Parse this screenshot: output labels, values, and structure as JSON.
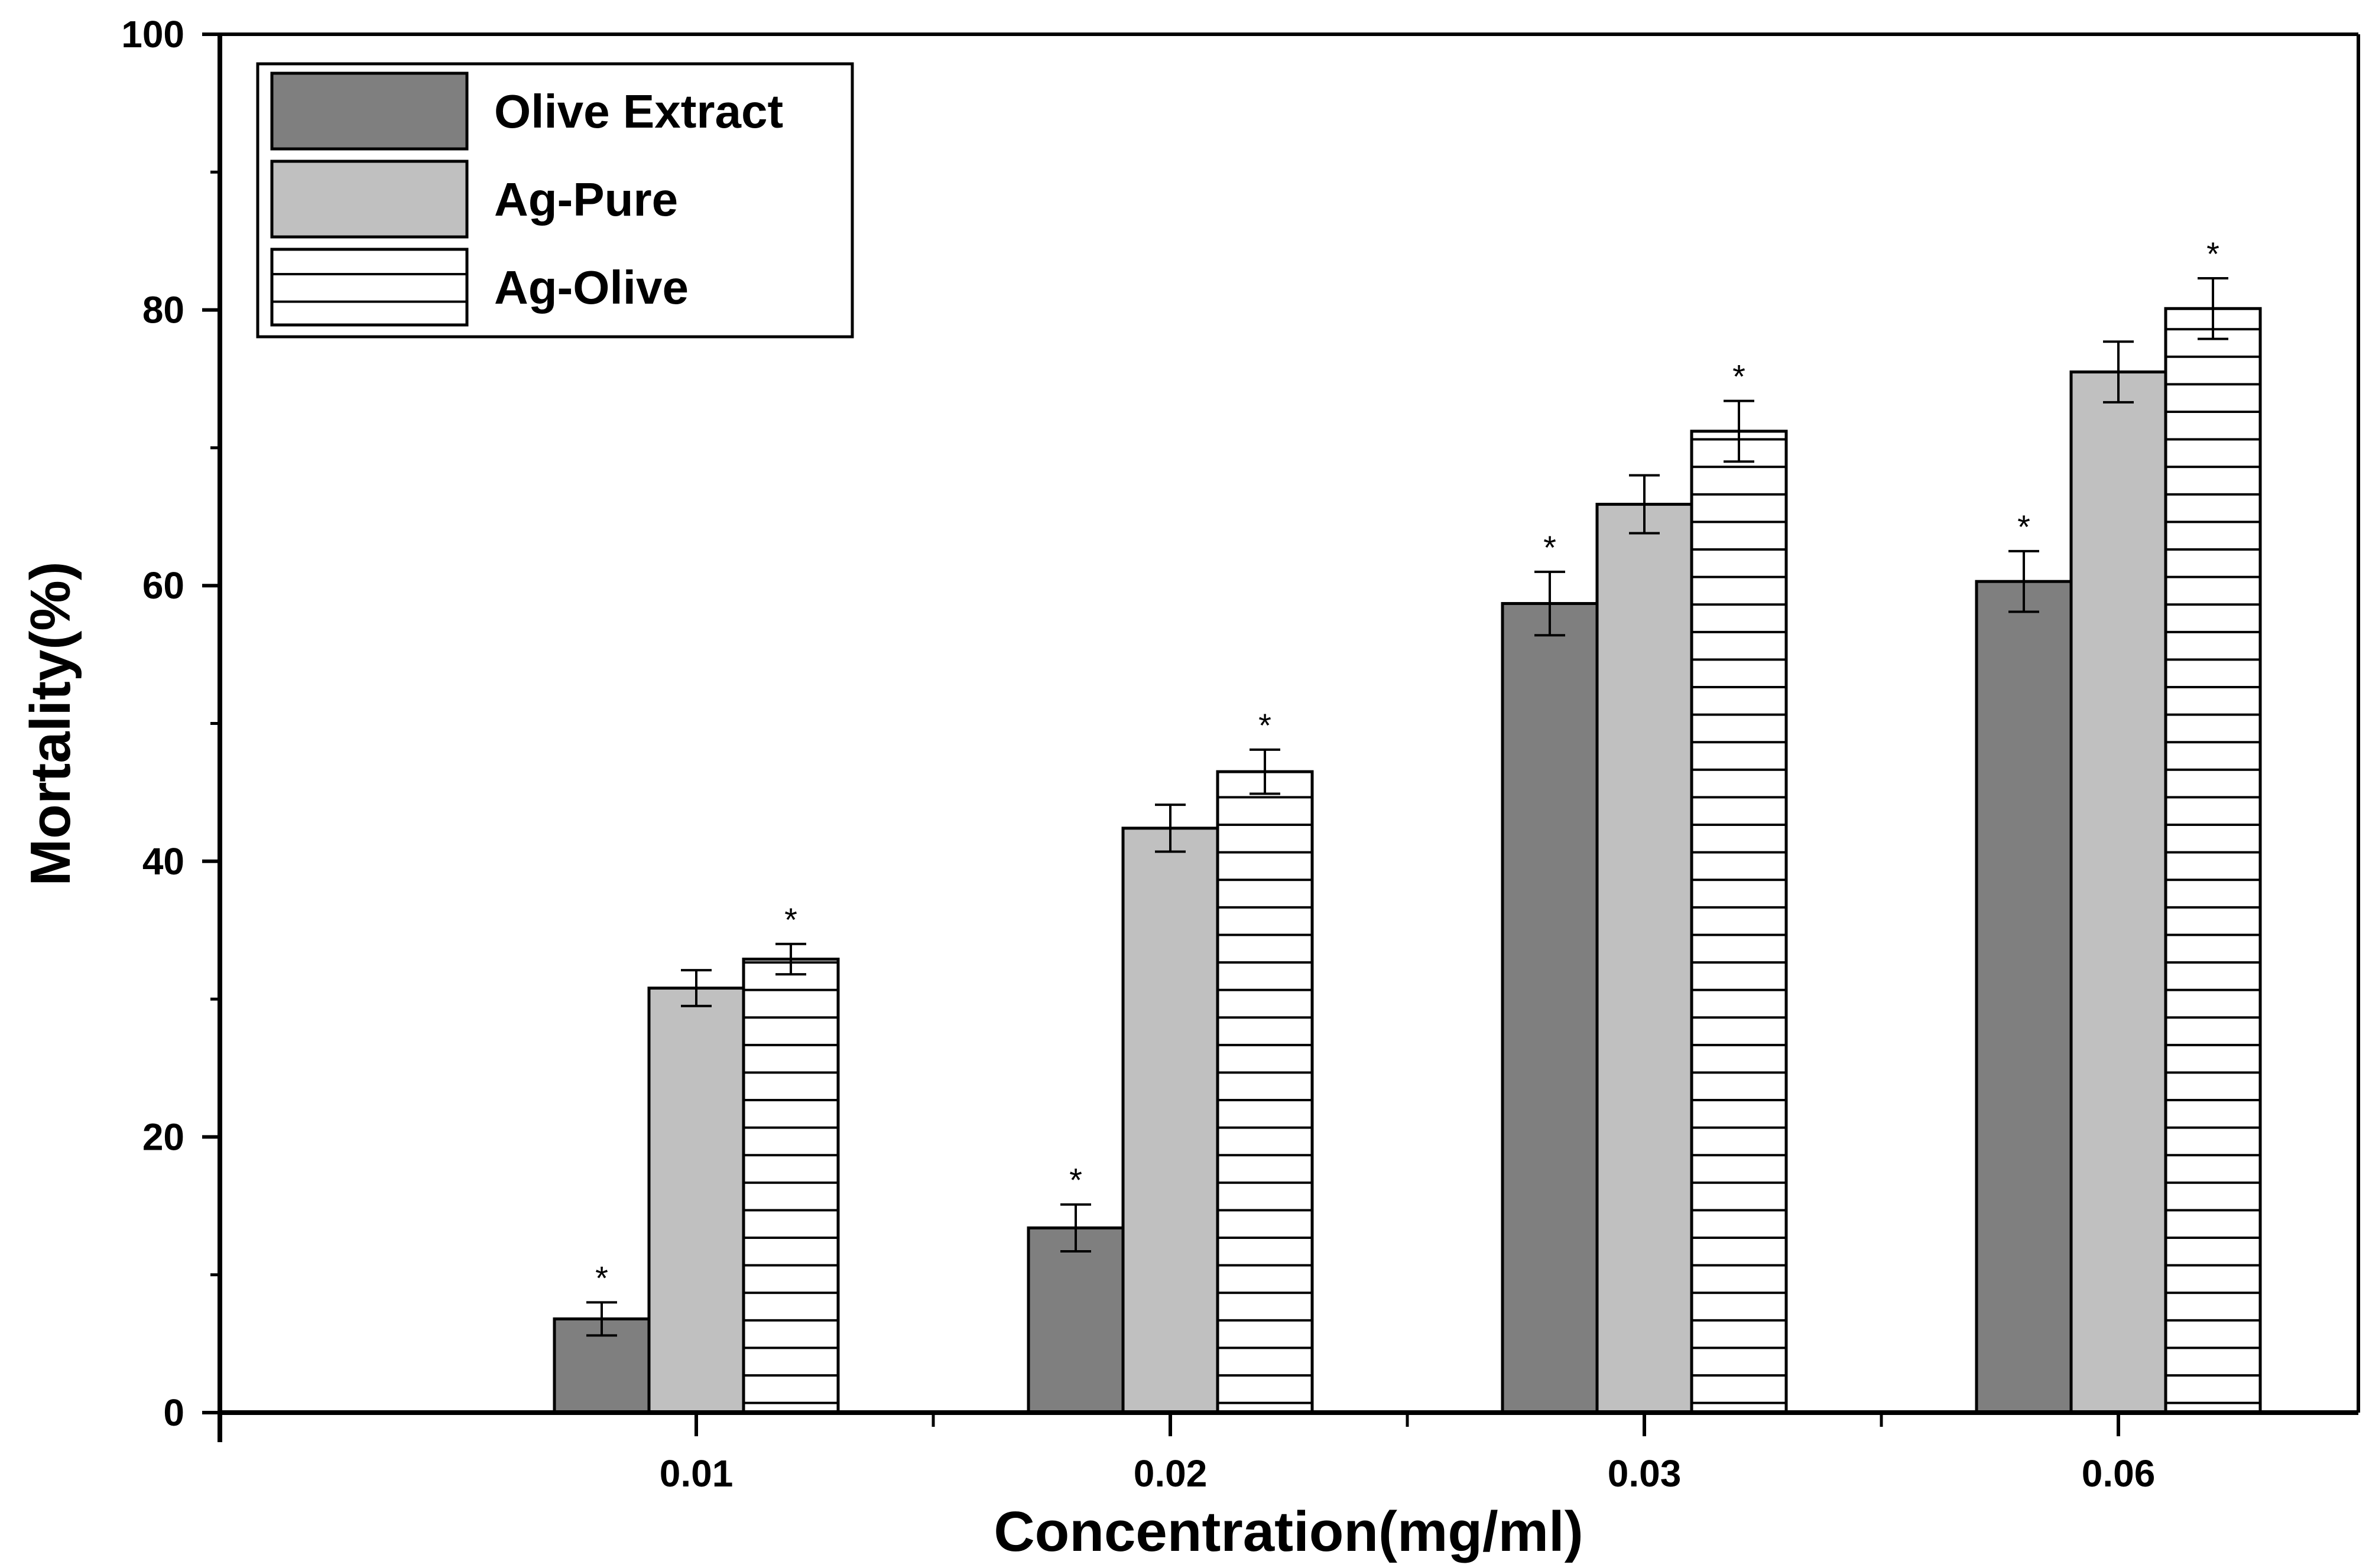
{
  "chart_data": {
    "type": "bar",
    "title": "",
    "xlabel": "Concentration(mg/ml)",
    "ylabel": "Mortality(%)",
    "ylim": [
      0,
      100
    ],
    "yticks": [
      0,
      20,
      40,
      60,
      80,
      100
    ],
    "categories": [
      "0.01",
      "0.02",
      "0.03",
      "0.06"
    ],
    "series": [
      {
        "name": "Olive Extract",
        "values": [
          6.8,
          13.4,
          58.7,
          60.3
        ],
        "errors": [
          1.2,
          1.7,
          2.3,
          2.2
        ],
        "significant": [
          true,
          true,
          true,
          true
        ],
        "fill": "#7f7f7f",
        "pattern": "solid"
      },
      {
        "name": "Ag-Pure",
        "values": [
          30.8,
          42.4,
          65.9,
          75.5
        ],
        "errors": [
          1.3,
          1.7,
          2.1,
          2.2
        ],
        "significant": [
          false,
          false,
          false,
          false
        ],
        "fill": "#c0c0c0",
        "pattern": "solid"
      },
      {
        "name": "Ag-Olive",
        "values": [
          32.9,
          46.5,
          71.2,
          80.1
        ],
        "errors": [
          1.1,
          1.6,
          2.2,
          2.2
        ],
        "significant": [
          true,
          true,
          true,
          true
        ],
        "fill": "#ffffff",
        "pattern": "horizontal-lines"
      }
    ],
    "significance_marker": "*",
    "legend": {
      "position": "top-left",
      "entries": [
        "Olive Extract",
        "Ag-Pure",
        "Ag-Olive"
      ]
    },
    "grid": false
  }
}
